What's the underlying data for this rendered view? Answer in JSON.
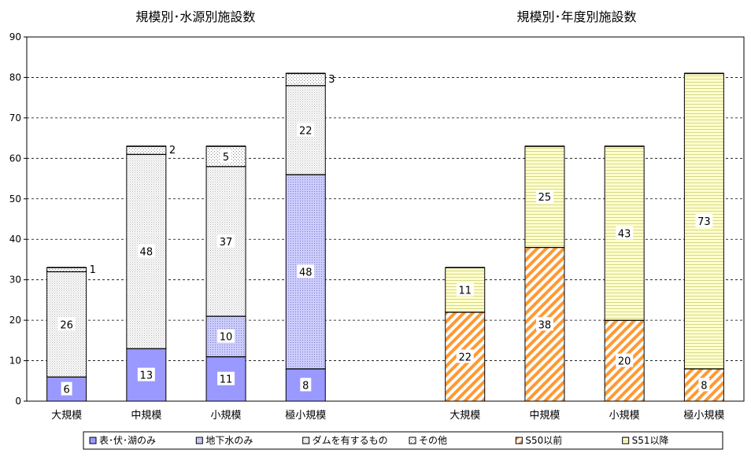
{
  "chart_data": {
    "type": "bar",
    "stacked": true,
    "ylim": [
      0,
      90
    ],
    "yticks": [
      0,
      10,
      20,
      30,
      40,
      50,
      60,
      70,
      80,
      90
    ],
    "grid": true,
    "legend_position": "bottom",
    "groups": [
      {
        "title": "規模別･水源別施設数",
        "categories": [
          "大規模",
          "中規模",
          "小規模",
          "極小規模"
        ],
        "series": [
          {
            "name": "表･伏･湖のみ",
            "color": "#9999ff",
            "pattern": "solid",
            "values": [
              6,
              13,
              11,
              8
            ]
          },
          {
            "name": "地下水のみ",
            "color": "#ccccff",
            "pattern": "dots-dense",
            "values": [
              0,
              0,
              10,
              48
            ]
          },
          {
            "name": "ダムを有するもの",
            "color": "#ffffff",
            "pattern": "dots-light",
            "values": [
              26,
              48,
              37,
              22
            ]
          },
          {
            "name": "その他",
            "color": "#ffffff",
            "pattern": "dots-sparse",
            "values": [
              1,
              2,
              5,
              3
            ]
          }
        ]
      },
      {
        "title": "規模別･年度別施設数",
        "categories": [
          "大規模",
          "中規模",
          "小規模",
          "極小規模"
        ],
        "series": [
          {
            "name": "S50以前",
            "color": "#ff9933",
            "pattern": "diagonal",
            "values": [
              22,
              38,
              20,
              8
            ]
          },
          {
            "name": "S51以降",
            "color": "#ffffcc",
            "pattern": "horizontal",
            "values": [
              11,
              25,
              43,
              73
            ]
          }
        ]
      }
    ],
    "legend": [
      "表･伏･湖のみ",
      "地下水のみ",
      "ダムを有するもの",
      "その他",
      "S50以前",
      "S51以降"
    ]
  }
}
